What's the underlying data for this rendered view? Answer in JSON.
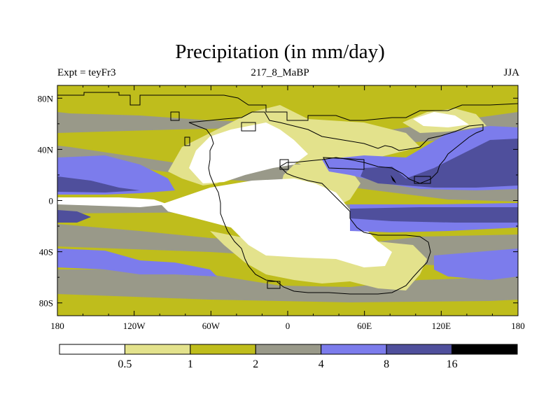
{
  "title": "Precipitation (in mm/day)",
  "left_label": "Expt = teyFr3",
  "center_label": "217_8_MaBP",
  "right_label": "JJA",
  "colors": {
    "bin0": "#ffffff",
    "bin1": "#e3e28c",
    "bin2": "#bfbd1c",
    "bin3": "#999989",
    "bin4": "#7c7cec",
    "bin5": "#4f4f9c",
    "bin6": "#000000"
  },
  "chart_data": {
    "type": "heatmap",
    "title": "Precipitation (in mm/day)",
    "variable": "Precipitation",
    "units": "mm/day",
    "season": "JJA",
    "x_ticks": [
      "180",
      "120W",
      "60W",
      "0",
      "60E",
      "120E",
      "180"
    ],
    "x_values": [
      -180,
      -120,
      -60,
      0,
      60,
      120,
      180
    ],
    "y_ticks": [
      "80N",
      "40N",
      "0",
      "40S",
      "80S"
    ],
    "y_values": [
      80,
      40,
      0,
      -40,
      -80
    ],
    "xlim": [
      -180,
      180
    ],
    "ylim": [
      -90,
      90
    ],
    "colorbar_levels": [
      "0.5",
      "1",
      "2",
      "4",
      "8",
      "16"
    ],
    "level_values": [
      0.5,
      1,
      2,
      4,
      8,
      16
    ]
  }
}
